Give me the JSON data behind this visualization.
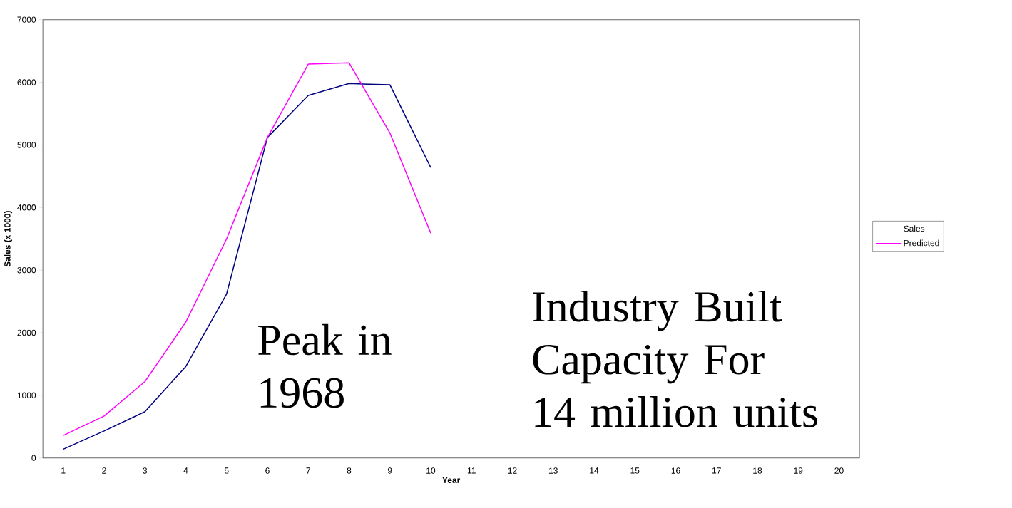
{
  "chart_data": {
    "type": "line",
    "xlabel": "Year",
    "ylabel": "Sales (x 1000)",
    "categories": [
      "1",
      "2",
      "3",
      "4",
      "5",
      "6",
      "7",
      "8",
      "9",
      "10",
      "11",
      "12",
      "13",
      "14",
      "15",
      "16",
      "17",
      "18",
      "19",
      "20"
    ],
    "series": [
      {
        "name": "Sales",
        "color": "#000080",
        "values": [
          140,
          430,
          740,
          1460,
          2620,
          5120,
          5790,
          5980,
          5960,
          4640,
          null,
          null,
          null,
          null,
          null,
          null,
          null,
          null,
          null,
          null
        ]
      },
      {
        "name": "Predicted",
        "color": "#ff00ff",
        "values": [
          360,
          670,
          1220,
          2170,
          3500,
          5120,
          6290,
          6310,
          5190,
          3590,
          null,
          null,
          null,
          null,
          null,
          null,
          null,
          null,
          null,
          null
        ]
      }
    ],
    "ylim": [
      0,
      7000
    ],
    "yticks": [
      0,
      1000,
      2000,
      3000,
      4000,
      5000,
      6000,
      7000
    ],
    "legend": "right",
    "grid": false,
    "marker": "none",
    "line_style": "solid",
    "annotations": [
      "Peak in 1968",
      "Industry Built Capacity For 14 million units"
    ]
  }
}
